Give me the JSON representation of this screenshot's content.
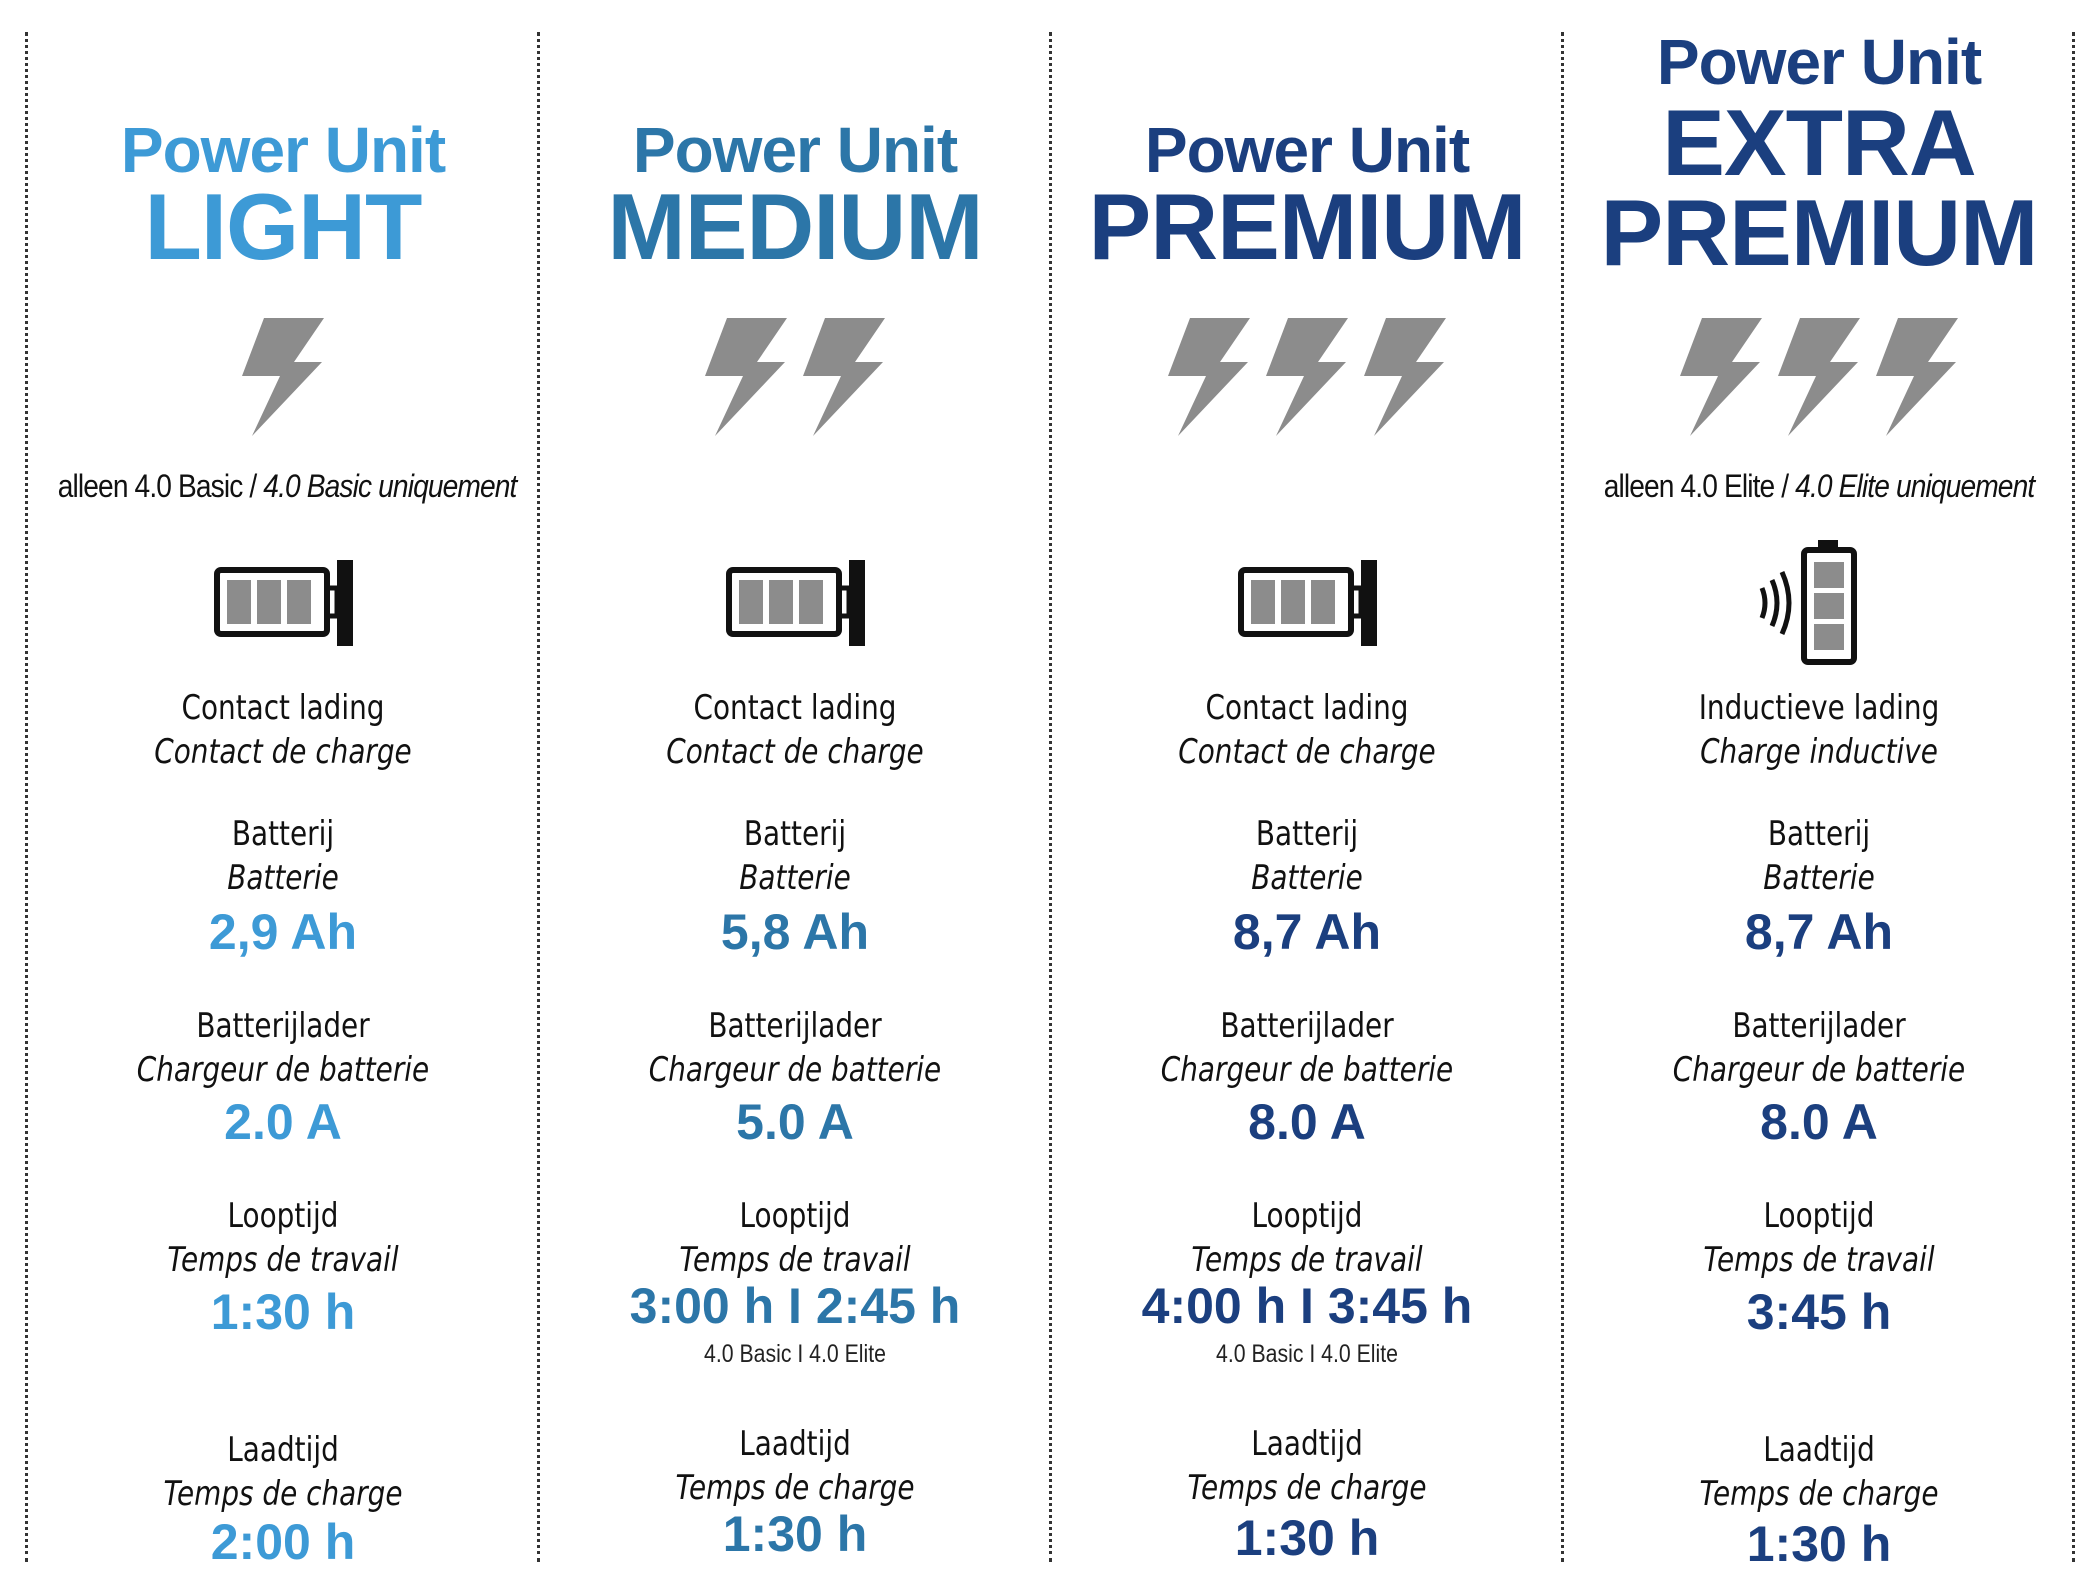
{
  "colors": {
    "light": "#3d9ad6",
    "medium": "#2c76a8",
    "premium": "#1b3f7f",
    "bolt": "#8c8c8c"
  },
  "labels": {
    "charge_nl_contact": "Contact lading",
    "charge_fr_contact": "Contact de charge",
    "charge_nl_inductive": "Inductieve lading",
    "charge_fr_inductive": "Charge inductive",
    "battery_nl": "Batterij",
    "battery_fr": "Batterie",
    "charger_nl": "Batterijlader",
    "charger_fr": "Chargeur de batterie",
    "runtime_nl": "Looptijd",
    "runtime_fr": "Temps de travail",
    "chargetime_nl": "Laadtijd",
    "chargetime_fr": "Temps de charge"
  },
  "columns": [
    {
      "title_line1": "Power Unit",
      "title_line2": "LIGHT",
      "title_line3": "",
      "bolts": 1,
      "icon": "battery-contact-icon",
      "note_nl": "alleen 4.0 Basic / ",
      "note_fr": "4.0 Basic uniquement",
      "battery": "2,9 Ah",
      "charger": "2.0 A",
      "runtime": "1:30 h",
      "runtime_note": "",
      "chargetime": "2:00 h"
    },
    {
      "title_line1": "Power Unit",
      "title_line2": "MEDIUM",
      "title_line3": "",
      "bolts": 2,
      "icon": "battery-contact-icon",
      "note_nl": "",
      "note_fr": "",
      "battery": "5,8 Ah",
      "charger": "5.0 A",
      "runtime": "3:00 h I 2:45 h",
      "runtime_note": "4.0 Basic I 4.0 Elite",
      "chargetime": "1:30 h"
    },
    {
      "title_line1": "Power Unit",
      "title_line2": "PREMIUM",
      "title_line3": "",
      "bolts": 3,
      "icon": "battery-contact-icon",
      "note_nl": "",
      "note_fr": "",
      "battery": "8,7 Ah",
      "charger": "8.0 A",
      "runtime": "4:00 h I 3:45 h",
      "runtime_note": "4.0 Basic I 4.0 Elite",
      "chargetime": "1:30 h"
    },
    {
      "title_line1": "Power Unit",
      "title_line2": "EXTRA",
      "title_line3": "PREMIUM",
      "bolts": 3,
      "icon": "battery-inductive-icon",
      "note_nl": "alleen 4.0 Elite / ",
      "note_fr": "4.0 Elite uniquement",
      "battery": "8,7 Ah",
      "charger": "8.0 A",
      "runtime": "3:45 h",
      "runtime_note": "",
      "chargetime": "1:30 h"
    }
  ]
}
